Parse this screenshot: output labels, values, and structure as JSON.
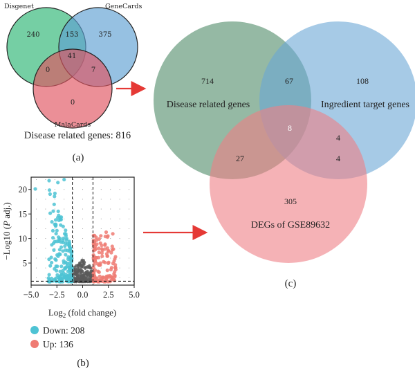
{
  "venn_a": {
    "label": "(a)",
    "set_names": [
      "Disgenet",
      "GeneCards",
      "MalaCards"
    ],
    "colors": [
      "#2bb673",
      "#5d9fd3",
      "#e0535f"
    ],
    "regions": {
      "disgenet_only": "240",
      "genecards_only": "375",
      "disgenet_genecards": "153",
      "all_three": "41",
      "disgenet_malacards": "0",
      "genecards_malacards": "7",
      "malacards_only": "0"
    },
    "summary": "Disease related genes: 816"
  },
  "volcano_b": {
    "label": "(b)",
    "ylabel_prefix": "−Log10 (",
    "ylabel_italic": "P",
    "ylabel_suffix": " adj.)",
    "xlabel_main": "Log",
    "xlabel_sub": "2",
    "xlabel_rest": " (fold change)",
    "xticks": [
      "−5.0",
      "−2.5",
      "0.0",
      "2.5",
      "5.0"
    ],
    "yticks": [
      "5",
      "10",
      "15",
      "20"
    ],
    "xlim": [
      -5.0,
      5.0
    ],
    "ylim": [
      0.5,
      22.5
    ],
    "legend": [
      {
        "label": "Down: 208",
        "color": "#4ec3d4"
      },
      {
        "label": "Up: 136",
        "color": "#ef7b73"
      }
    ],
    "ns_color": "#5a5a5a"
  },
  "venn_c": {
    "label": "(c)",
    "set_names": [
      "Disease related genes",
      "Ingredient target genes",
      "DEGs of GSE89632"
    ],
    "colors": [
      "#4e8a67",
      "#6aa6d6",
      "#ef7f86"
    ],
    "regions": {
      "disease_only": "714",
      "ingredient_only": "108",
      "disease_ingredient": "67",
      "all_three": "8",
      "disease_degs": "27",
      "ingredient_degs": "4",
      "ingredient_degs_2": "4",
      "degs_only": "305"
    }
  },
  "arrows": {
    "color": "#e53935"
  }
}
